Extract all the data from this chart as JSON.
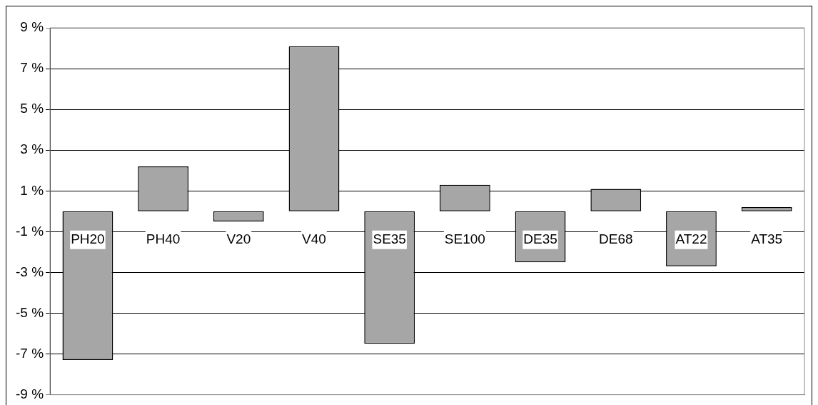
{
  "chart_data": {
    "type": "bar",
    "categories": [
      "PH20",
      "PH40",
      "V20",
      "V40",
      "SE35",
      "SE100",
      "DE35",
      "DE68",
      "AT22",
      "AT35"
    ],
    "values": [
      -7.3,
      2.2,
      -0.5,
      8.1,
      -6.5,
      1.3,
      -2.5,
      1.1,
      -2.7,
      0.2
    ],
    "color": "#a6a6a6",
    "ylim": [
      -9,
      9
    ],
    "yticks": [
      {
        "value": 9,
        "label": "9 %"
      },
      {
        "value": 7,
        "label": "7 %"
      },
      {
        "value": 5,
        "label": "5 %"
      },
      {
        "value": 3,
        "label": "3 %"
      },
      {
        "value": 1,
        "label": "1 %"
      },
      {
        "value": -1,
        "label": "-1 %"
      },
      {
        "value": -3,
        "label": "-3 %"
      },
      {
        "value": -5,
        "label": "-5 %"
      },
      {
        "value": -7,
        "label": "-7 %"
      },
      {
        "value": -9,
        "label": "-9 %"
      }
    ],
    "grid": "y",
    "legend": false
  }
}
